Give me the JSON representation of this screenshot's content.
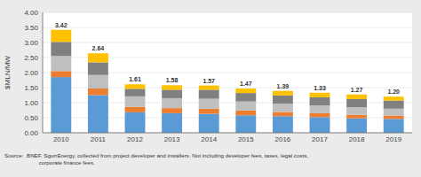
{
  "chart_data": {
    "type": "bar",
    "stacked": true,
    "grid": true,
    "ylabel": "$MLN/MW",
    "categories": [
      "2010",
      "2011",
      "2012",
      "2013",
      "2014",
      "2015",
      "2016",
      "2017",
      "2018",
      "2019"
    ],
    "series": [
      {
        "color": "#5B9BD5",
        "values": [
          1.85,
          1.25,
          0.68,
          0.65,
          0.63,
          0.58,
          0.55,
          0.52,
          0.48,
          0.46
        ]
      },
      {
        "color": "#ED7D31",
        "values": [
          0.2,
          0.22,
          0.18,
          0.17,
          0.17,
          0.16,
          0.14,
          0.13,
          0.12,
          0.11
        ]
      },
      {
        "color": "#BFBFBF",
        "values": [
          0.5,
          0.45,
          0.35,
          0.33,
          0.33,
          0.3,
          0.28,
          0.26,
          0.25,
          0.23
        ]
      },
      {
        "color": "#808080",
        "values": [
          0.47,
          0.42,
          0.25,
          0.28,
          0.3,
          0.28,
          0.27,
          0.27,
          0.27,
          0.27
        ]
      },
      {
        "color": "#FFC000",
        "values": [
          0.4,
          0.3,
          0.15,
          0.15,
          0.14,
          0.15,
          0.15,
          0.15,
          0.15,
          0.13
        ]
      }
    ],
    "totals": [
      3.42,
      2.64,
      1.61,
      1.58,
      1.57,
      1.47,
      1.39,
      1.33,
      1.27,
      1.2
    ],
    "total_labels": [
      "3.42",
      "2.64",
      "1.61",
      "1.58",
      "1.57",
      "1.47",
      "1.39",
      "1.33",
      "1.27",
      "1.20"
    ],
    "ylim": [
      0,
      4.0
    ],
    "yticks": [
      {
        "value": 0,
        "label": "0.00"
      },
      {
        "value": 0.5,
        "label": "0.50"
      },
      {
        "value": 1,
        "label": "1.00"
      },
      {
        "value": 1.5,
        "label": "1.50"
      },
      {
        "value": 2,
        "label": "2.00"
      },
      {
        "value": 2.5,
        "label": "2.50"
      },
      {
        "value": 3,
        "label": "3.00"
      },
      {
        "value": 3.5,
        "label": "3.50"
      },
      {
        "value": 4,
        "label": "4.00"
      }
    ],
    "annotations": [
      "Source:",
      "BNEF, SgurrEnergy, collected from project developer and installers. Not including developer fees, taxes, legal costs,\n        corporate finance fees."
    ]
  }
}
